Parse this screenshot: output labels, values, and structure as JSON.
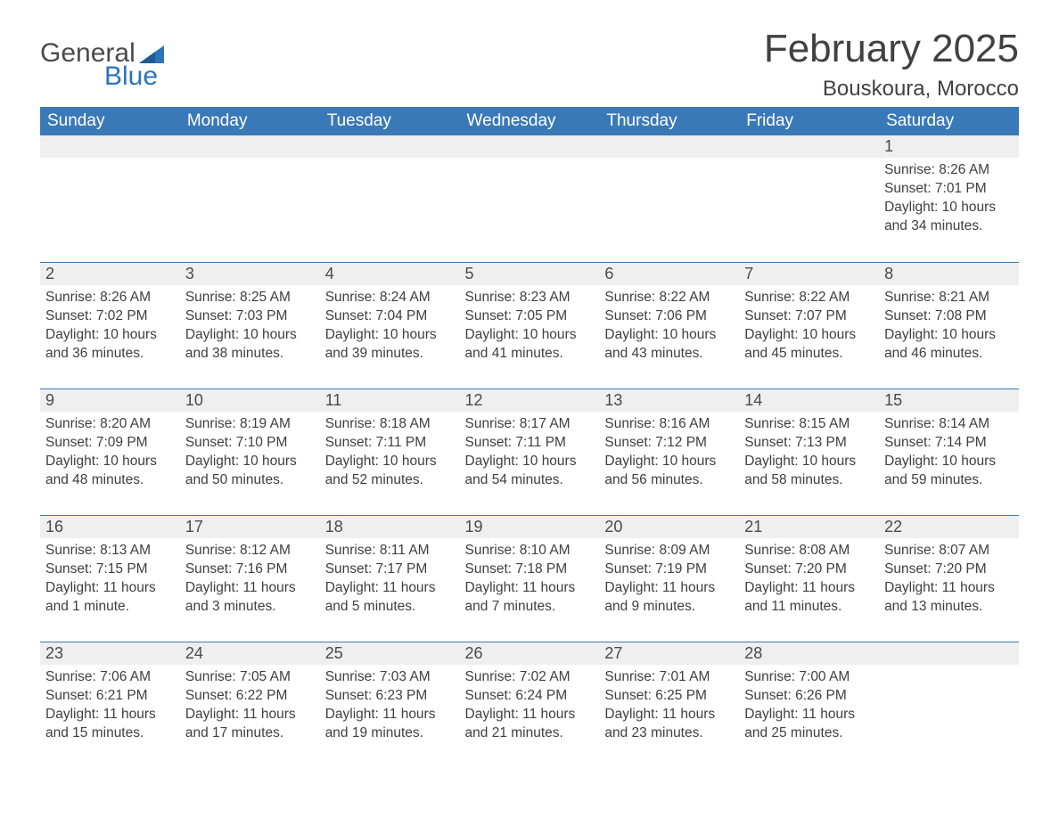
{
  "brand": {
    "part1": "General",
    "part2": "Blue",
    "accent_color": "#2b74b8",
    "text_color": "#4a4a4a"
  },
  "title": "February 2025",
  "location": "Bouskoura, Morocco",
  "colors": {
    "header_bg": "#3a79b7",
    "header_text": "#ffffff",
    "daynum_bg": "#efefef",
    "divider": "#3a79b7",
    "body_text": "#3f3f3f",
    "page_bg": "#ffffff"
  },
  "weekdays": [
    "Sunday",
    "Monday",
    "Tuesday",
    "Wednesday",
    "Thursday",
    "Friday",
    "Saturday"
  ],
  "weeks": [
    [
      null,
      null,
      null,
      null,
      null,
      null,
      {
        "n": "1",
        "sunrise": "8:26 AM",
        "sunset": "7:01 PM",
        "daylight": "10 hours and 34 minutes."
      }
    ],
    [
      {
        "n": "2",
        "sunrise": "8:26 AM",
        "sunset": "7:02 PM",
        "daylight": "10 hours and 36 minutes."
      },
      {
        "n": "3",
        "sunrise": "8:25 AM",
        "sunset": "7:03 PM",
        "daylight": "10 hours and 38 minutes."
      },
      {
        "n": "4",
        "sunrise": "8:24 AM",
        "sunset": "7:04 PM",
        "daylight": "10 hours and 39 minutes."
      },
      {
        "n": "5",
        "sunrise": "8:23 AM",
        "sunset": "7:05 PM",
        "daylight": "10 hours and 41 minutes."
      },
      {
        "n": "6",
        "sunrise": "8:22 AM",
        "sunset": "7:06 PM",
        "daylight": "10 hours and 43 minutes."
      },
      {
        "n": "7",
        "sunrise": "8:22 AM",
        "sunset": "7:07 PM",
        "daylight": "10 hours and 45 minutes."
      },
      {
        "n": "8",
        "sunrise": "8:21 AM",
        "sunset": "7:08 PM",
        "daylight": "10 hours and 46 minutes."
      }
    ],
    [
      {
        "n": "9",
        "sunrise": "8:20 AM",
        "sunset": "7:09 PM",
        "daylight": "10 hours and 48 minutes."
      },
      {
        "n": "10",
        "sunrise": "8:19 AM",
        "sunset": "7:10 PM",
        "daylight": "10 hours and 50 minutes."
      },
      {
        "n": "11",
        "sunrise": "8:18 AM",
        "sunset": "7:11 PM",
        "daylight": "10 hours and 52 minutes."
      },
      {
        "n": "12",
        "sunrise": "8:17 AM",
        "sunset": "7:11 PM",
        "daylight": "10 hours and 54 minutes."
      },
      {
        "n": "13",
        "sunrise": "8:16 AM",
        "sunset": "7:12 PM",
        "daylight": "10 hours and 56 minutes."
      },
      {
        "n": "14",
        "sunrise": "8:15 AM",
        "sunset": "7:13 PM",
        "daylight": "10 hours and 58 minutes."
      },
      {
        "n": "15",
        "sunrise": "8:14 AM",
        "sunset": "7:14 PM",
        "daylight": "10 hours and 59 minutes."
      }
    ],
    [
      {
        "n": "16",
        "sunrise": "8:13 AM",
        "sunset": "7:15 PM",
        "daylight": "11 hours and 1 minute."
      },
      {
        "n": "17",
        "sunrise": "8:12 AM",
        "sunset": "7:16 PM",
        "daylight": "11 hours and 3 minutes."
      },
      {
        "n": "18",
        "sunrise": "8:11 AM",
        "sunset": "7:17 PM",
        "daylight": "11 hours and 5 minutes."
      },
      {
        "n": "19",
        "sunrise": "8:10 AM",
        "sunset": "7:18 PM",
        "daylight": "11 hours and 7 minutes."
      },
      {
        "n": "20",
        "sunrise": "8:09 AM",
        "sunset": "7:19 PM",
        "daylight": "11 hours and 9 minutes."
      },
      {
        "n": "21",
        "sunrise": "8:08 AM",
        "sunset": "7:20 PM",
        "daylight": "11 hours and 11 minutes."
      },
      {
        "n": "22",
        "sunrise": "8:07 AM",
        "sunset": "7:20 PM",
        "daylight": "11 hours and 13 minutes."
      }
    ],
    [
      {
        "n": "23",
        "sunrise": "7:06 AM",
        "sunset": "6:21 PM",
        "daylight": "11 hours and 15 minutes."
      },
      {
        "n": "24",
        "sunrise": "7:05 AM",
        "sunset": "6:22 PM",
        "daylight": "11 hours and 17 minutes."
      },
      {
        "n": "25",
        "sunrise": "7:03 AM",
        "sunset": "6:23 PM",
        "daylight": "11 hours and 19 minutes."
      },
      {
        "n": "26",
        "sunrise": "7:02 AM",
        "sunset": "6:24 PM",
        "daylight": "11 hours and 21 minutes."
      },
      {
        "n": "27",
        "sunrise": "7:01 AM",
        "sunset": "6:25 PM",
        "daylight": "11 hours and 23 minutes."
      },
      {
        "n": "28",
        "sunrise": "7:00 AM",
        "sunset": "6:26 PM",
        "daylight": "11 hours and 25 minutes."
      },
      null
    ]
  ],
  "labels": {
    "sunrise": "Sunrise: ",
    "sunset": "Sunset: ",
    "daylight": "Daylight: "
  }
}
